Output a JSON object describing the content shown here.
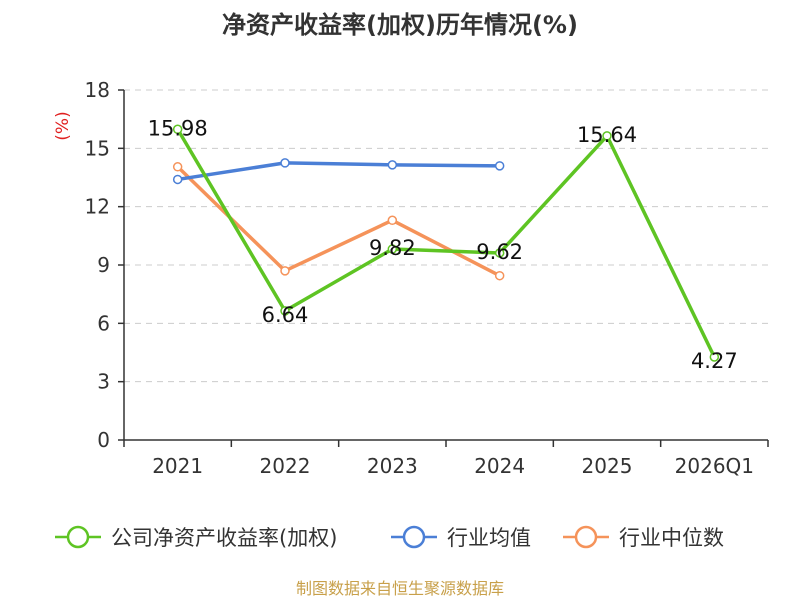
{
  "chart_data": {
    "type": "line",
    "title": "净资产收益率(加权)历年情况(%)",
    "ylabel": "(%)",
    "xlabel": "",
    "categories": [
      "2021",
      "2022",
      "2023",
      "2024",
      "2025",
      "2026Q1"
    ],
    "ylim": [
      0,
      18
    ],
    "yticks": [
      0,
      3,
      6,
      9,
      12,
      15,
      18
    ],
    "grid": true,
    "legend_position": "bottom",
    "series": [
      {
        "name": "公司净资产收益率(加权)",
        "color": "#5ec423",
        "values": [
          15.98,
          6.64,
          9.82,
          9.62,
          15.64,
          4.27
        ],
        "labels": [
          "15.98",
          "6.64",
          "9.82",
          "9.62",
          "15.64",
          "4.27"
        ]
      },
      {
        "name": "行业均值",
        "color": "#4b7fd6",
        "values": [
          13.4,
          14.25,
          14.15,
          14.1,
          null,
          null
        ]
      },
      {
        "name": "行业中位数",
        "color": "#f5935a",
        "values": [
          14.05,
          8.7,
          11.3,
          8.45,
          null,
          null
        ]
      }
    ]
  },
  "footer": "制图数据来自恒生聚源数据库"
}
